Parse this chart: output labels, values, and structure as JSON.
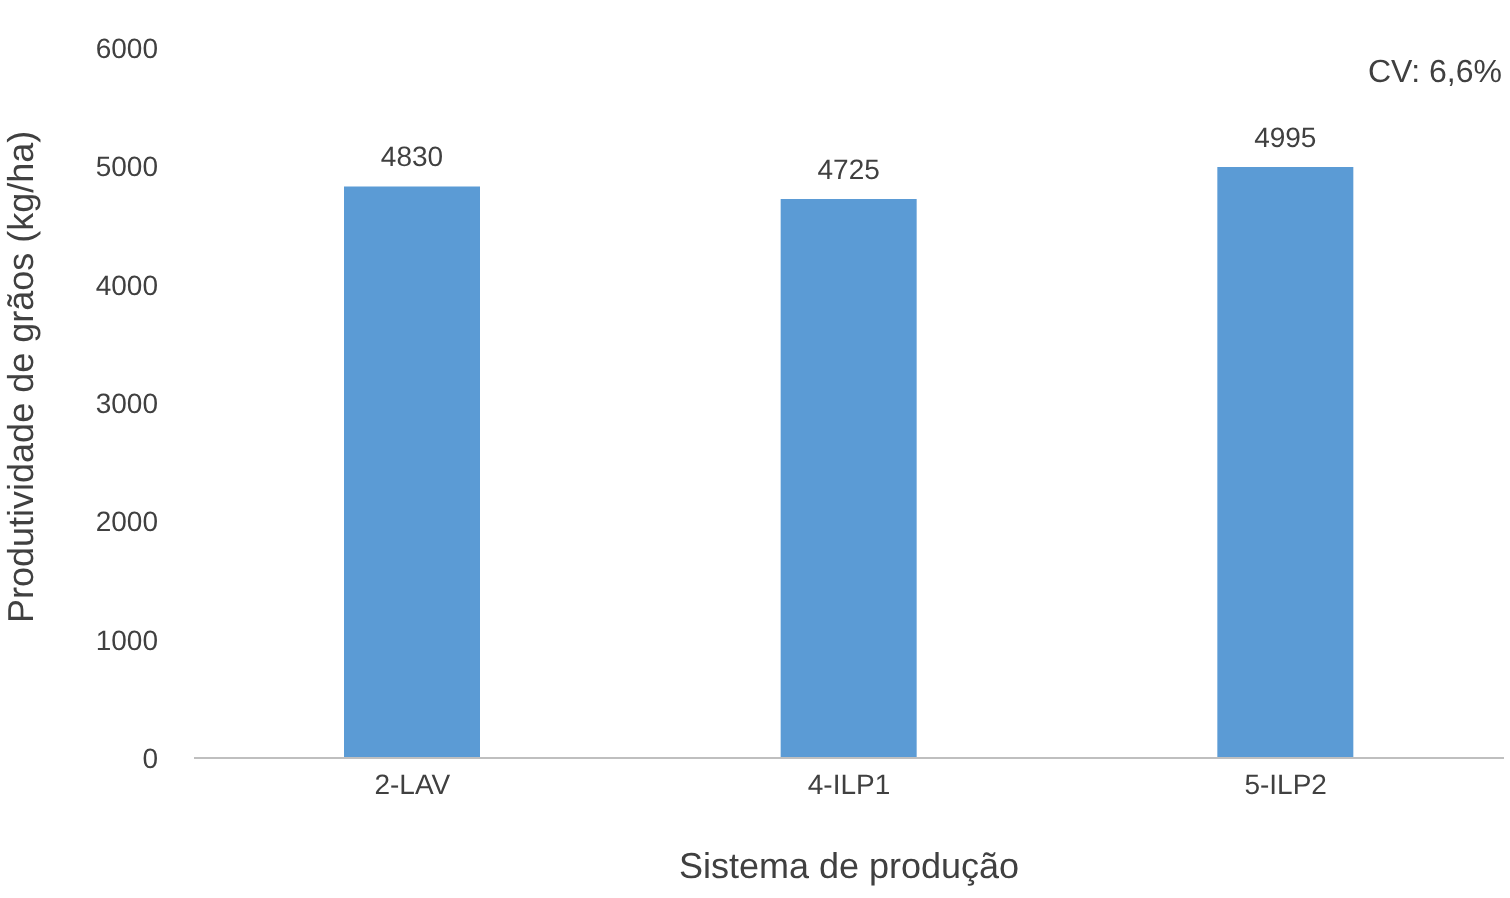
{
  "chart_data": {
    "type": "bar",
    "categories": [
      "2-LAV",
      "4-ILP1",
      "5-ILP2"
    ],
    "values": [
      4830,
      4725,
      4995
    ],
    "color": "#5b9bd5",
    "ylim": [
      0,
      6000
    ],
    "yticks": [
      0,
      1000,
      2000,
      3000,
      4000,
      5000,
      6000
    ],
    "xlabel": "Sistema de produção",
    "ylabel": "Produtividade de grãos (kg/ha)",
    "data_labels": true,
    "grid": false,
    "legend": false,
    "annotations": [
      "CV: 6,6%"
    ]
  }
}
